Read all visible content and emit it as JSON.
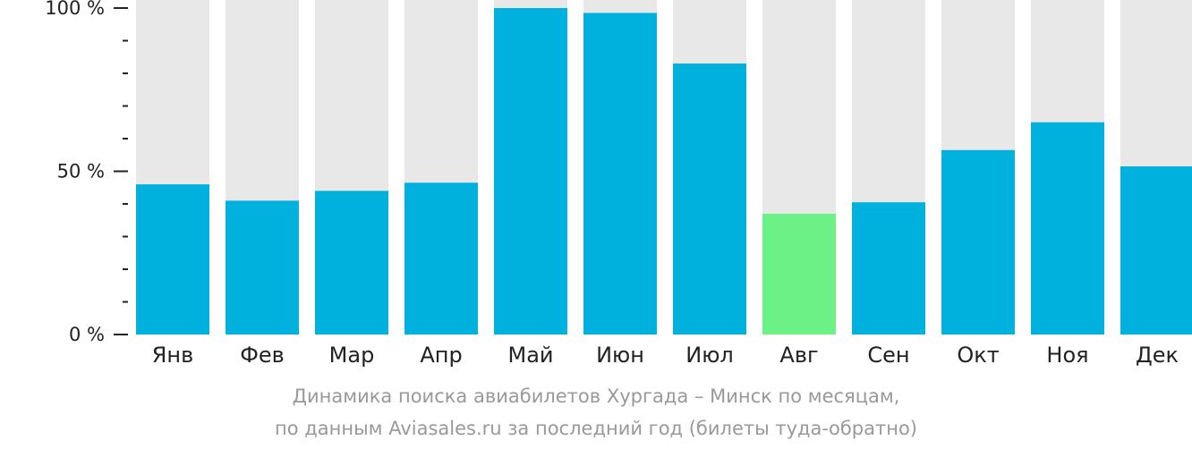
{
  "chart_data": {
    "type": "bar",
    "categories": [
      "Янв",
      "Фев",
      "Мар",
      "Апр",
      "Май",
      "Июн",
      "Июл",
      "Авг",
      "Сен",
      "Окт",
      "Ноя",
      "Дек"
    ],
    "values": [
      46,
      41,
      44,
      46.5,
      100,
      98.5,
      83,
      37,
      40.5,
      56.5,
      65,
      51.5
    ],
    "ylim": [
      0,
      100
    ],
    "yticks": [
      {
        "value": 0,
        "label": "0 %"
      },
      {
        "value": 50,
        "label": "50 %"
      },
      {
        "value": 100,
        "label": "100 %"
      }
    ],
    "minor_tick_step": 10,
    "highlight_index": 7,
    "colors": {
      "bar": "#00b0dd",
      "highlight": "#6bf185",
      "background_bar": "#e8e8e8",
      "axis": "#222222"
    },
    "caption_lines": [
      "Динамика поиска авиабилетов Хургада – Минск по месяцам,",
      "по данным Aviasales.ru за последний год (билеты туда-обратно)"
    ]
  }
}
